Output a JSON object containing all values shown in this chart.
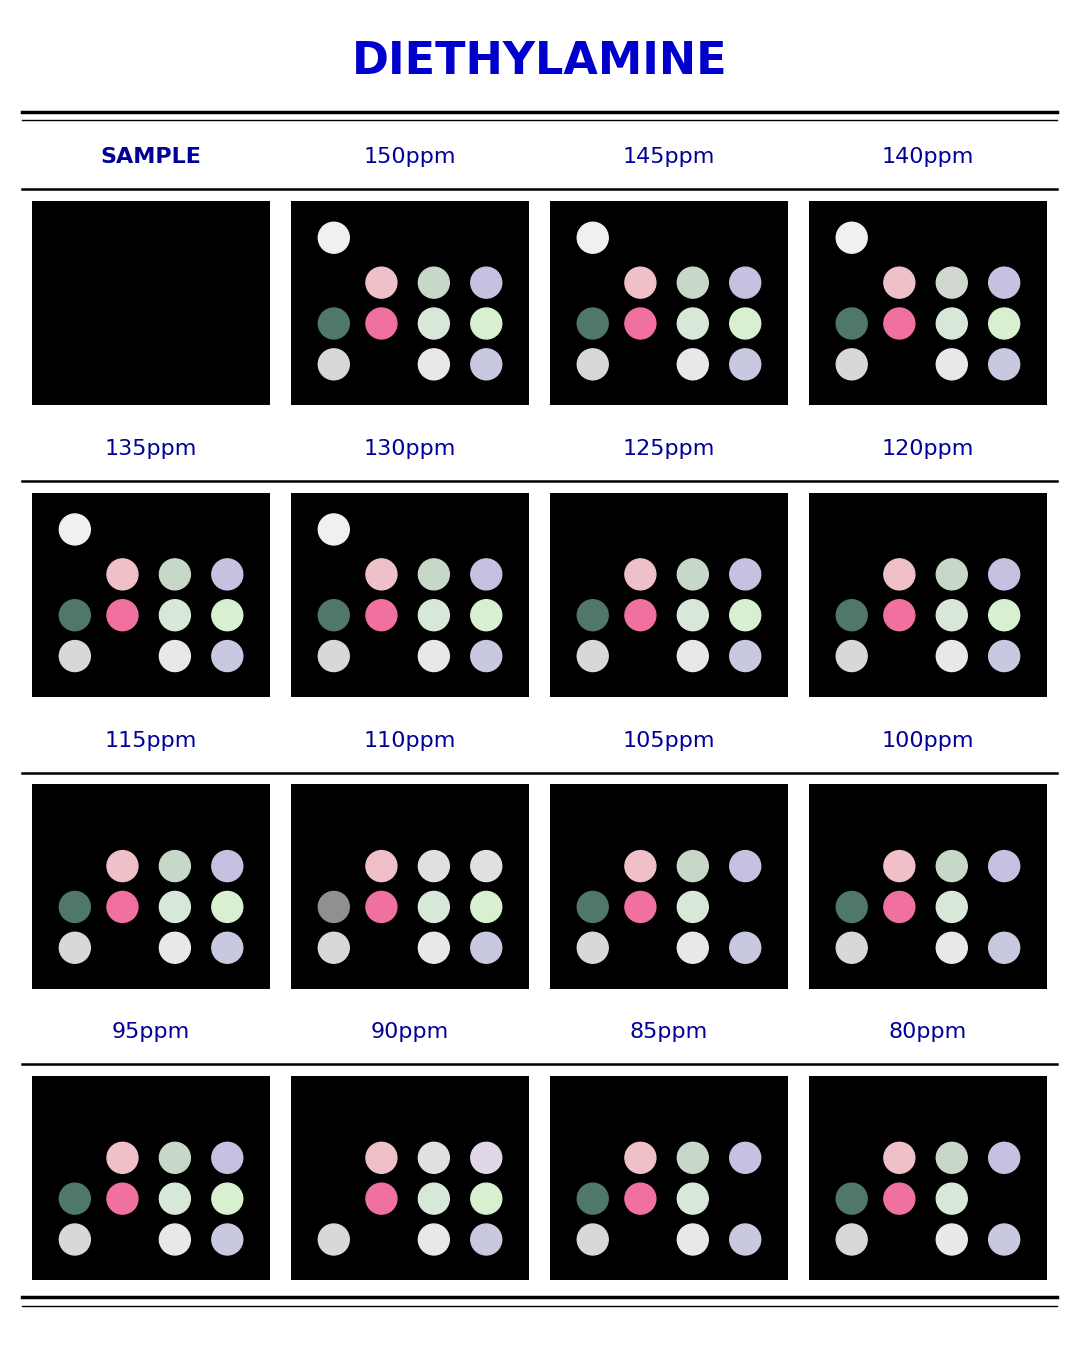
{
  "title": "DIETHYLAMINE",
  "title_color": "#0000CC",
  "title_fontsize": 32,
  "bg_color": "white",
  "cell_bg": "black",
  "header_color": "#000099",
  "rows": [
    {
      "labels": [
        "SAMPLE",
        "150ppm",
        "145ppm",
        "140ppm"
      ],
      "label_bold": [
        true,
        false,
        false,
        false
      ],
      "show_dots": [
        false,
        true,
        true,
        true
      ],
      "dot_patterns": [
        null,
        {
          "dots": [
            {
              "col": 0,
              "row": 0,
              "color": "#f0f0f0"
            },
            {
              "col": 1,
              "row": 1,
              "color": "#f0c0c8"
            },
            {
              "col": 2,
              "row": 1,
              "color": "#c8d8c8"
            },
            {
              "col": 3,
              "row": 1,
              "color": "#c8c0e0"
            },
            {
              "col": 0,
              "row": 2,
              "color": "#507868"
            },
            {
              "col": 1,
              "row": 2,
              "color": "#f070a0"
            },
            {
              "col": 2,
              "row": 2,
              "color": "#d8e8d8"
            },
            {
              "col": 3,
              "row": 2,
              "color": "#d8f0d0"
            },
            {
              "col": 0,
              "row": 3,
              "color": "#d8d8d8"
            },
            {
              "col": 2,
              "row": 3,
              "color": "#e8e8e8"
            },
            {
              "col": 3,
              "row": 3,
              "color": "#c8c8e0"
            }
          ]
        },
        {
          "dots": [
            {
              "col": 0,
              "row": 0,
              "color": "#f0f0f0"
            },
            {
              "col": 1,
              "row": 1,
              "color": "#f0c0c8"
            },
            {
              "col": 2,
              "row": 1,
              "color": "#c8d8c8"
            },
            {
              "col": 3,
              "row": 1,
              "color": "#c8c0e0"
            },
            {
              "col": 0,
              "row": 2,
              "color": "#507868"
            },
            {
              "col": 1,
              "row": 2,
              "color": "#f070a0"
            },
            {
              "col": 2,
              "row": 2,
              "color": "#d8e8d8"
            },
            {
              "col": 3,
              "row": 2,
              "color": "#d8f0d0"
            },
            {
              "col": 0,
              "row": 3,
              "color": "#d8d8d8"
            },
            {
              "col": 2,
              "row": 3,
              "color": "#e8e8e8"
            },
            {
              "col": 3,
              "row": 3,
              "color": "#c8c8e0"
            }
          ]
        },
        {
          "dots": [
            {
              "col": 0,
              "row": 0,
              "color": "#f0f0f0"
            },
            {
              "col": 1,
              "row": 1,
              "color": "#f0c0c8"
            },
            {
              "col": 2,
              "row": 1,
              "color": "#d0d8d0"
            },
            {
              "col": 3,
              "row": 1,
              "color": "#c8c0e0"
            },
            {
              "col": 0,
              "row": 2,
              "color": "#507868"
            },
            {
              "col": 1,
              "row": 2,
              "color": "#f070a0"
            },
            {
              "col": 2,
              "row": 2,
              "color": "#d8e8d8"
            },
            {
              "col": 3,
              "row": 2,
              "color": "#d8f0d0"
            },
            {
              "col": 0,
              "row": 3,
              "color": "#d8d8d8"
            },
            {
              "col": 2,
              "row": 3,
              "color": "#e8e8e8"
            },
            {
              "col": 3,
              "row": 3,
              "color": "#c8c8e0"
            }
          ]
        }
      ]
    },
    {
      "labels": [
        "135ppm",
        "130ppm",
        "125ppm",
        "120ppm"
      ],
      "label_bold": [
        false,
        false,
        false,
        false
      ],
      "show_dots": [
        true,
        true,
        true,
        true
      ],
      "dot_patterns": [
        {
          "dots": [
            {
              "col": 0,
              "row": 0,
              "color": "#f0f0f0"
            },
            {
              "col": 1,
              "row": 1,
              "color": "#f0c0c8"
            },
            {
              "col": 2,
              "row": 1,
              "color": "#c8d8c8"
            },
            {
              "col": 3,
              "row": 1,
              "color": "#c8c0e0"
            },
            {
              "col": 0,
              "row": 2,
              "color": "#507868"
            },
            {
              "col": 1,
              "row": 2,
              "color": "#f070a0"
            },
            {
              "col": 2,
              "row": 2,
              "color": "#d8e8d8"
            },
            {
              "col": 3,
              "row": 2,
              "color": "#d8f0d0"
            },
            {
              "col": 0,
              "row": 3,
              "color": "#d8d8d8"
            },
            {
              "col": 2,
              "row": 3,
              "color": "#e8e8e8"
            },
            {
              "col": 3,
              "row": 3,
              "color": "#c8c8e0"
            }
          ]
        },
        {
          "dots": [
            {
              "col": 0,
              "row": 0,
              "color": "#f0f0f0"
            },
            {
              "col": 1,
              "row": 1,
              "color": "#f0c0c8"
            },
            {
              "col": 2,
              "row": 1,
              "color": "#c8d8c8"
            },
            {
              "col": 3,
              "row": 1,
              "color": "#c8c0e0"
            },
            {
              "col": 0,
              "row": 2,
              "color": "#507868"
            },
            {
              "col": 1,
              "row": 2,
              "color": "#f070a0"
            },
            {
              "col": 2,
              "row": 2,
              "color": "#d8e8d8"
            },
            {
              "col": 3,
              "row": 2,
              "color": "#d8f0d0"
            },
            {
              "col": 0,
              "row": 3,
              "color": "#d8d8d8"
            },
            {
              "col": 2,
              "row": 3,
              "color": "#e8e8e8"
            },
            {
              "col": 3,
              "row": 3,
              "color": "#c8c8e0"
            }
          ]
        },
        {
          "dots": [
            {
              "col": 1,
              "row": 1,
              "color": "#f0c0c8"
            },
            {
              "col": 2,
              "row": 1,
              "color": "#c8d8c8"
            },
            {
              "col": 3,
              "row": 1,
              "color": "#c8c0e0"
            },
            {
              "col": 0,
              "row": 2,
              "color": "#507868"
            },
            {
              "col": 1,
              "row": 2,
              "color": "#f070a0"
            },
            {
              "col": 2,
              "row": 2,
              "color": "#d8e8d8"
            },
            {
              "col": 3,
              "row": 2,
              "color": "#d8f0d0"
            },
            {
              "col": 0,
              "row": 3,
              "color": "#d8d8d8"
            },
            {
              "col": 2,
              "row": 3,
              "color": "#e8e8e8"
            },
            {
              "col": 3,
              "row": 3,
              "color": "#c8c8e0"
            }
          ]
        },
        {
          "dots": [
            {
              "col": 1,
              "row": 1,
              "color": "#f0c0c8"
            },
            {
              "col": 2,
              "row": 1,
              "color": "#c8d8c8"
            },
            {
              "col": 3,
              "row": 1,
              "color": "#c8c0e0"
            },
            {
              "col": 0,
              "row": 2,
              "color": "#507868"
            },
            {
              "col": 1,
              "row": 2,
              "color": "#f070a0"
            },
            {
              "col": 2,
              "row": 2,
              "color": "#d8e8d8"
            },
            {
              "col": 3,
              "row": 2,
              "color": "#d8f0d0"
            },
            {
              "col": 0,
              "row": 3,
              "color": "#d8d8d8"
            },
            {
              "col": 2,
              "row": 3,
              "color": "#e8e8e8"
            },
            {
              "col": 3,
              "row": 3,
              "color": "#c8c8e0"
            }
          ]
        }
      ]
    },
    {
      "labels": [
        "115ppm",
        "110ppm",
        "105ppm",
        "100ppm"
      ],
      "label_bold": [
        false,
        false,
        false,
        false
      ],
      "show_dots": [
        true,
        true,
        true,
        true
      ],
      "dot_patterns": [
        {
          "dots": [
            {
              "col": 1,
              "row": 1,
              "color": "#f0c0c8"
            },
            {
              "col": 2,
              "row": 1,
              "color": "#c8d8c8"
            },
            {
              "col": 3,
              "row": 1,
              "color": "#c8c0e0"
            },
            {
              "col": 0,
              "row": 2,
              "color": "#507868"
            },
            {
              "col": 1,
              "row": 2,
              "color": "#f070a0"
            },
            {
              "col": 2,
              "row": 2,
              "color": "#d8e8d8"
            },
            {
              "col": 3,
              "row": 2,
              "color": "#d8f0d0"
            },
            {
              "col": 0,
              "row": 3,
              "color": "#d8d8d8"
            },
            {
              "col": 2,
              "row": 3,
              "color": "#e8e8e8"
            },
            {
              "col": 3,
              "row": 3,
              "color": "#c8c8e0"
            }
          ]
        },
        {
          "dots": [
            {
              "col": 1,
              "row": 1,
              "color": "#f0c0c8"
            },
            {
              "col": 2,
              "row": 1,
              "color": "#e0e0e0"
            },
            {
              "col": 3,
              "row": 1,
              "color": "#e0e0e0"
            },
            {
              "col": 0,
              "row": 2,
              "color": "#909090"
            },
            {
              "col": 1,
              "row": 2,
              "color": "#f070a0"
            },
            {
              "col": 2,
              "row": 2,
              "color": "#d8e8d8"
            },
            {
              "col": 3,
              "row": 2,
              "color": "#d8f0d0"
            },
            {
              "col": 0,
              "row": 3,
              "color": "#d8d8d8"
            },
            {
              "col": 2,
              "row": 3,
              "color": "#e8e8e8"
            },
            {
              "col": 3,
              "row": 3,
              "color": "#c8c8e0"
            }
          ]
        },
        {
          "dots": [
            {
              "col": 1,
              "row": 1,
              "color": "#f0c0c8"
            },
            {
              "col": 2,
              "row": 1,
              "color": "#c8d8c8"
            },
            {
              "col": 3,
              "row": 1,
              "color": "#c8c0e0"
            },
            {
              "col": 0,
              "row": 2,
              "color": "#507868"
            },
            {
              "col": 1,
              "row": 2,
              "color": "#f070a0"
            },
            {
              "col": 2,
              "row": 2,
              "color": "#d8e8d8"
            },
            {
              "col": 0,
              "row": 3,
              "color": "#d8d8d8"
            },
            {
              "col": 2,
              "row": 3,
              "color": "#e8e8e8"
            },
            {
              "col": 3,
              "row": 3,
              "color": "#c8c8e0"
            }
          ]
        },
        {
          "dots": [
            {
              "col": 1,
              "row": 1,
              "color": "#f0c0c8"
            },
            {
              "col": 2,
              "row": 1,
              "color": "#c8d8c8"
            },
            {
              "col": 3,
              "row": 1,
              "color": "#c8c0e0"
            },
            {
              "col": 0,
              "row": 2,
              "color": "#507868"
            },
            {
              "col": 1,
              "row": 2,
              "color": "#f070a0"
            },
            {
              "col": 2,
              "row": 2,
              "color": "#d8e8d8"
            },
            {
              "col": 0,
              "row": 3,
              "color": "#d8d8d8"
            },
            {
              "col": 2,
              "row": 3,
              "color": "#e8e8e8"
            },
            {
              "col": 3,
              "row": 3,
              "color": "#c8c8e0"
            }
          ]
        }
      ]
    },
    {
      "labels": [
        "95ppm",
        "90ppm",
        "85ppm",
        "80ppm"
      ],
      "label_bold": [
        false,
        false,
        false,
        false
      ],
      "show_dots": [
        true,
        true,
        true,
        true
      ],
      "dot_patterns": [
        {
          "dots": [
            {
              "col": 1,
              "row": 1,
              "color": "#f0c0c8"
            },
            {
              "col": 2,
              "row": 1,
              "color": "#c8d8c8"
            },
            {
              "col": 3,
              "row": 1,
              "color": "#c8c0e0"
            },
            {
              "col": 0,
              "row": 2,
              "color": "#507868"
            },
            {
              "col": 1,
              "row": 2,
              "color": "#f070a0"
            },
            {
              "col": 2,
              "row": 2,
              "color": "#d8e8d8"
            },
            {
              "col": 3,
              "row": 2,
              "color": "#d8f0d0"
            },
            {
              "col": 0,
              "row": 3,
              "color": "#d8d8d8"
            },
            {
              "col": 2,
              "row": 3,
              "color": "#e8e8e8"
            },
            {
              "col": 3,
              "row": 3,
              "color": "#c8c8e0"
            }
          ]
        },
        {
          "dots": [
            {
              "col": 1,
              "row": 1,
              "color": "#f0c0c8"
            },
            {
              "col": 2,
              "row": 1,
              "color": "#e0e0e0"
            },
            {
              "col": 3,
              "row": 1,
              "color": "#e0d8e8"
            },
            {
              "col": 1,
              "row": 2,
              "color": "#f070a0"
            },
            {
              "col": 2,
              "row": 2,
              "color": "#d8e8d8"
            },
            {
              "col": 3,
              "row": 2,
              "color": "#d8f0d0"
            },
            {
              "col": 0,
              "row": 3,
              "color": "#d8d8d8"
            },
            {
              "col": 2,
              "row": 3,
              "color": "#e8e8e8"
            },
            {
              "col": 3,
              "row": 3,
              "color": "#c8c8e0"
            }
          ]
        },
        {
          "dots": [
            {
              "col": 1,
              "row": 1,
              "color": "#f0c0c8"
            },
            {
              "col": 2,
              "row": 1,
              "color": "#c8d8c8"
            },
            {
              "col": 3,
              "row": 1,
              "color": "#c8c0e0"
            },
            {
              "col": 0,
              "row": 2,
              "color": "#507868"
            },
            {
              "col": 1,
              "row": 2,
              "color": "#f070a0"
            },
            {
              "col": 2,
              "row": 2,
              "color": "#d8e8d8"
            },
            {
              "col": 0,
              "row": 3,
              "color": "#d8d8d8"
            },
            {
              "col": 2,
              "row": 3,
              "color": "#e8e8e8"
            },
            {
              "col": 3,
              "row": 3,
              "color": "#c8c8e0"
            }
          ]
        },
        {
          "dots": [
            {
              "col": 1,
              "row": 1,
              "color": "#f0c0c8"
            },
            {
              "col": 2,
              "row": 1,
              "color": "#c8d8c8"
            },
            {
              "col": 3,
              "row": 1,
              "color": "#c8c0e0"
            },
            {
              "col": 0,
              "row": 2,
              "color": "#507868"
            },
            {
              "col": 1,
              "row": 2,
              "color": "#f070a0"
            },
            {
              "col": 2,
              "row": 2,
              "color": "#d8e8d8"
            },
            {
              "col": 0,
              "row": 3,
              "color": "#d8d8d8"
            },
            {
              "col": 2,
              "row": 3,
              "color": "#e8e8e8"
            },
            {
              "col": 3,
              "row": 3,
              "color": "#c8c8e0"
            }
          ]
        }
      ]
    }
  ]
}
